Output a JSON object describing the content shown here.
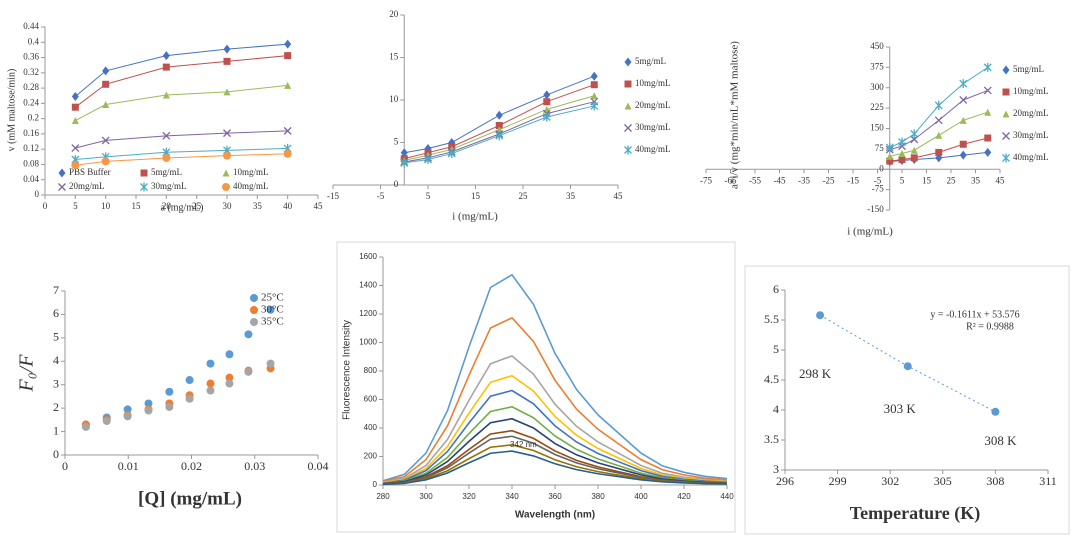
{
  "chart_data": [
    {
      "type": "scatter",
      "x": [
        5,
        10,
        20,
        30,
        40
      ],
      "xlim": [
        0,
        45
      ],
      "xticks": [
        0,
        5,
        10,
        15,
        20,
        25,
        30,
        35,
        40,
        45
      ],
      "ylim": [
        0,
        0.44
      ],
      "yticks": [
        0,
        0.04,
        0.08,
        0.12,
        0.16,
        0.2,
        0.24,
        0.28,
        0.32,
        0.36,
        0.4,
        0.44
      ],
      "xlabel": "a (mg/mL)",
      "ylabel": "v (mM maltose/min)",
      "lines": "solid",
      "legend": "lower center",
      "series": [
        {
          "name": "PBS Buffer",
          "color": "#4472c4",
          "marker": "diamond",
          "values": [
            0.258,
            0.325,
            0.365,
            0.382,
            0.395
          ]
        },
        {
          "name": "5mg/mL",
          "color": "#c0504d",
          "marker": "square",
          "values": [
            0.23,
            0.29,
            0.335,
            0.35,
            0.365
          ]
        },
        {
          "name": "10mg/mL",
          "color": "#9bbb59",
          "marker": "triangle",
          "values": [
            0.195,
            0.237,
            0.262,
            0.27,
            0.287
          ]
        },
        {
          "name": "20mg/mL",
          "color": "#8064a2",
          "marker": "x",
          "values": [
            0.123,
            0.143,
            0.155,
            0.162,
            0.168
          ]
        },
        {
          "name": "30mg/mL",
          "color": "#4bacc6",
          "marker": "star",
          "values": [
            0.093,
            0.1,
            0.112,
            0.117,
            0.122
          ]
        },
        {
          "name": "40mg/mL",
          "color": "#f79646",
          "marker": "circle",
          "values": [
            0.078,
            0.088,
            0.097,
            0.103,
            0.108
          ]
        }
      ]
    },
    {
      "type": "scatter",
      "x": [
        0,
        5,
        10,
        20,
        30,
        40
      ],
      "xlim": [
        -15,
        45
      ],
      "xticks": [
        -15,
        -5,
        5,
        15,
        25,
        35,
        45
      ],
      "ylim": [
        0,
        20
      ],
      "yticks": [
        0,
        5,
        10,
        15,
        20
      ],
      "xlabel": "i (mg/mL)",
      "lines": "solid",
      "legend": "right",
      "series": [
        {
          "name": "5mg/mL",
          "color": "#4472c4",
          "marker": "diamond",
          "values": [
            3.8,
            4.3,
            5.0,
            8.2,
            10.6,
            12.8
          ]
        },
        {
          "name": "10mg/mL",
          "color": "#c0504d",
          "marker": "square",
          "values": [
            3.1,
            3.8,
            4.5,
            7.0,
            9.8,
            11.8
          ]
        },
        {
          "name": "20mg/mL",
          "color": "#9bbb59",
          "marker": "triangle",
          "values": [
            2.9,
            3.5,
            4.2,
            6.5,
            8.9,
            10.5
          ]
        },
        {
          "name": "30mg/mL",
          "color": "#8064a2",
          "marker": "x",
          "values": [
            2.7,
            3.2,
            3.9,
            6.0,
            8.4,
            9.8
          ]
        },
        {
          "name": "40mg/mL",
          "color": "#4bacc6",
          "marker": "star",
          "values": [
            2.6,
            3.0,
            3.7,
            5.8,
            8.0,
            9.3
          ]
        }
      ]
    },
    {
      "type": "scatter",
      "x": [
        0,
        5,
        10,
        20,
        30,
        40
      ],
      "xlim": [
        -75,
        45
      ],
      "xticks": [
        -75,
        -65,
        -55,
        -45,
        -35,
        -25,
        -15,
        -5,
        5,
        15,
        25,
        35,
        45
      ],
      "ylim": [
        -150,
        450
      ],
      "yticks": [
        -150,
        -75,
        0,
        75,
        150,
        225,
        300,
        375,
        450
      ],
      "xlabel": "i (mg/mL)",
      "ylabel": "a*i/v (mg*min/mL*mM maltose)",
      "lines": "solid",
      "legend": "right",
      "series": [
        {
          "name": "5mg/mL",
          "color": "#4472c4",
          "marker": "diamond",
          "values": [
            28,
            32,
            36,
            42,
            52,
            62
          ]
        },
        {
          "name": "10mg/mL",
          "color": "#c0504d",
          "marker": "square",
          "values": [
            30,
            36,
            42,
            62,
            92,
            115
          ]
        },
        {
          "name": "20mg/mL",
          "color": "#9bbb59",
          "marker": "triangle",
          "values": [
            48,
            58,
            70,
            125,
            180,
            210
          ]
        },
        {
          "name": "30mg/mL",
          "color": "#8064a2",
          "marker": "x",
          "values": [
            72,
            85,
            110,
            180,
            255,
            290
          ]
        },
        {
          "name": "40mg/mL",
          "color": "#4bacc6",
          "marker": "star",
          "values": [
            80,
            100,
            130,
            235,
            315,
            375
          ]
        }
      ]
    },
    {
      "type": "scatter",
      "x": [
        0.0033,
        0.0066,
        0.0099,
        0.0132,
        0.0165,
        0.0197,
        0.023,
        0.026,
        0.029,
        0.0325
      ],
      "xlim": [
        0,
        0.04
      ],
      "xticks": [
        0,
        0.01,
        0.02,
        0.03,
        0.04
      ],
      "ylim": [
        0,
        7
      ],
      "yticks": [
        0,
        1,
        2,
        3,
        4,
        5,
        6,
        7
      ],
      "xlabel": "[Q] (mg/mL)",
      "ylabel": "F₀/F",
      "legend": "upper right",
      "series": [
        {
          "name": "25°C",
          "color": "#5b9bd5",
          "marker": "circle",
          "values": [
            1.3,
            1.6,
            1.95,
            2.2,
            2.7,
            3.2,
            3.9,
            4.3,
            5.15,
            6.2
          ]
        },
        {
          "name": "30°C",
          "color": "#ed7d31",
          "marker": "circle",
          "values": [
            1.3,
            1.5,
            1.7,
            1.95,
            2.2,
            2.55,
            3.05,
            3.3,
            3.6,
            3.7
          ]
        },
        {
          "name": "35°C",
          "color": "#a5a5a5",
          "marker": "circle",
          "values": [
            1.2,
            1.45,
            1.65,
            1.9,
            2.05,
            2.4,
            2.75,
            3.05,
            3.55,
            3.9
          ]
        }
      ]
    },
    {
      "type": "line",
      "x": [
        280,
        290,
        300,
        310,
        320,
        330,
        340,
        350,
        360,
        370,
        380,
        390,
        400,
        410,
        420,
        430,
        440
      ],
      "xlim": [
        280,
        440
      ],
      "xticks": [
        280,
        300,
        320,
        340,
        360,
        380,
        400,
        420,
        440
      ],
      "ylim": [
        0,
        1600
      ],
      "yticks": [
        0,
        200,
        400,
        600,
        800,
        1000,
        1200,
        1400,
        1600
      ],
      "xlabel": "Wavelength (nm)",
      "ylabel": "Fluorescence Intensity",
      "annotation": "342 nm",
      "series": [
        {
          "color": "#5b9bd5",
          "values": [
            30,
            75,
            224,
            522,
            969,
            1386,
            1475,
            1267,
            924,
            671,
            492,
            358,
            224,
            134,
            89,
            60,
            45
          ]
        },
        {
          "color": "#ed7d31",
          "values": [
            24,
            59,
            178,
            415,
            770,
            1102,
            1173,
            1007,
            735,
            533,
            391,
            284,
            178,
            107,
            71,
            47,
            36
          ]
        },
        {
          "color": "#a5a5a5",
          "values": [
            18,
            46,
            137,
            320,
            595,
            851,
            906,
            778,
            567,
            412,
            302,
            220,
            137,
            82,
            55,
            37,
            27
          ]
        },
        {
          "color": "#ffc000",
          "values": [
            16,
            39,
            116,
            271,
            504,
            721,
            767,
            659,
            481,
            349,
            256,
            186,
            116,
            70,
            47,
            31,
            23
          ]
        },
        {
          "color": "#4472c4",
          "values": [
            13,
            34,
            101,
            235,
            436,
            623,
            663,
            570,
            415,
            302,
            221,
            161,
            101,
            60,
            40,
            27,
            20
          ]
        },
        {
          "color": "#70ad47",
          "values": [
            11,
            28,
            83,
            194,
            361,
            516,
            549,
            472,
            344,
            250,
            183,
            133,
            83,
            50,
            33,
            22,
            17
          ]
        },
        {
          "color": "#264478",
          "values": [
            9,
            24,
            71,
            165,
            306,
            437,
            465,
            400,
            291,
            212,
            155,
            113,
            71,
            42,
            28,
            19,
            14
          ]
        },
        {
          "color": "#9e480e",
          "values": [
            8,
            19,
            58,
            135,
            250,
            358,
            381,
            327,
            239,
            173,
            127,
            92,
            58,
            35,
            23,
            15,
            12
          ]
        },
        {
          "color": "#636363",
          "values": [
            7,
            17,
            52,
            121,
            224,
            321,
            342,
            293,
            214,
            155,
            114,
            83,
            52,
            31,
            21,
            14,
            10
          ]
        },
        {
          "color": "#997300",
          "values": [
            6,
            14,
            43,
            100,
            185,
            265,
            282,
            242,
            177,
            128,
            94,
            68,
            43,
            26,
            17,
            11,
            9
          ]
        },
        {
          "color": "#255e91",
          "values": [
            5,
            12,
            36,
            84,
            156,
            223,
            238,
            204,
            149,
            108,
            79,
            58,
            36,
            22,
            14,
            10,
            7
          ]
        }
      ]
    },
    {
      "type": "scatter",
      "x": [
        298,
        303,
        308
      ],
      "xlim": [
        296,
        311
      ],
      "xticks": [
        296,
        299,
        302,
        305,
        308,
        311
      ],
      "ylim": [
        3,
        6
      ],
      "yticks": [
        3,
        3.5,
        4,
        4.5,
        5,
        5.5,
        6
      ],
      "xlabel": "Temperature (K)",
      "lines": "dotted",
      "point_labels": [
        "298 K",
        "303 K",
        "308 K"
      ],
      "annotations": [
        "y = -0.1611x + 53.576",
        "R² = 0.9988"
      ],
      "series": [
        {
          "color": "#5b9bd5",
          "marker": "circle",
          "values": [
            5.58,
            4.73,
            3.97
          ]
        }
      ]
    }
  ]
}
